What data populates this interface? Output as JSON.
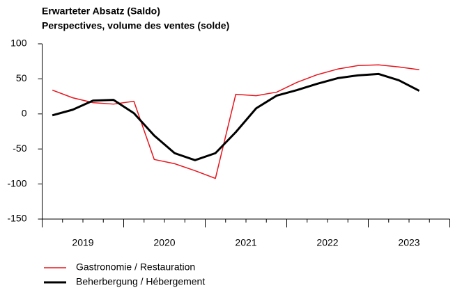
{
  "chart_data": {
    "type": "line",
    "title": "Erwarteter Absatz (Saldo)",
    "subtitle": "Perspectives, volume des ventes (solde)",
    "x": [
      2019.125,
      2019.375,
      2019.625,
      2019.875,
      2020.125,
      2020.375,
      2020.625,
      2020.875,
      2021.125,
      2021.375,
      2021.625,
      2021.875,
      2022.125,
      2022.375,
      2022.625,
      2022.875,
      2023.125,
      2023.375,
      2023.625
    ],
    "series": [
      {
        "name": "Gastronomie / Restauration",
        "color": "#e8141c",
        "width": 1.5,
        "values": [
          34,
          23,
          16,
          14,
          18,
          -65,
          -71,
          -81,
          -92,
          28,
          26,
          31,
          45,
          56,
          64,
          69,
          70,
          67,
          63
        ]
      },
      {
        "name": "Beherbergung / Hébergement",
        "color": "#000000",
        "width": 3,
        "values": [
          -2,
          6,
          19,
          20,
          1,
          -31,
          -56,
          -66,
          -56,
          -26,
          8,
          26,
          34,
          43,
          51,
          55,
          57,
          48,
          33
        ]
      }
    ],
    "xlim": [
      2019,
      2024
    ],
    "xticks": [
      {
        "value": 2019.5,
        "label": "2019"
      },
      {
        "value": 2020.5,
        "label": "2020"
      },
      {
        "value": 2021.5,
        "label": "2021"
      },
      {
        "value": 2022.5,
        "label": "2022"
      },
      {
        "value": 2023.5,
        "label": "2023"
      }
    ],
    "xmajor": [
      2019,
      2020,
      2021,
      2022,
      2023,
      2024
    ],
    "xminor": [
      2019.25,
      2019.5,
      2019.75,
      2020.25,
      2020.5,
      2020.75,
      2021.25,
      2021.5,
      2021.75,
      2022.25,
      2022.5,
      2022.75,
      2023.25,
      2023.5,
      2023.75
    ],
    "ylim": [
      -150,
      100
    ],
    "yticks": [
      100,
      50,
      0,
      -50,
      -100,
      -150
    ]
  }
}
